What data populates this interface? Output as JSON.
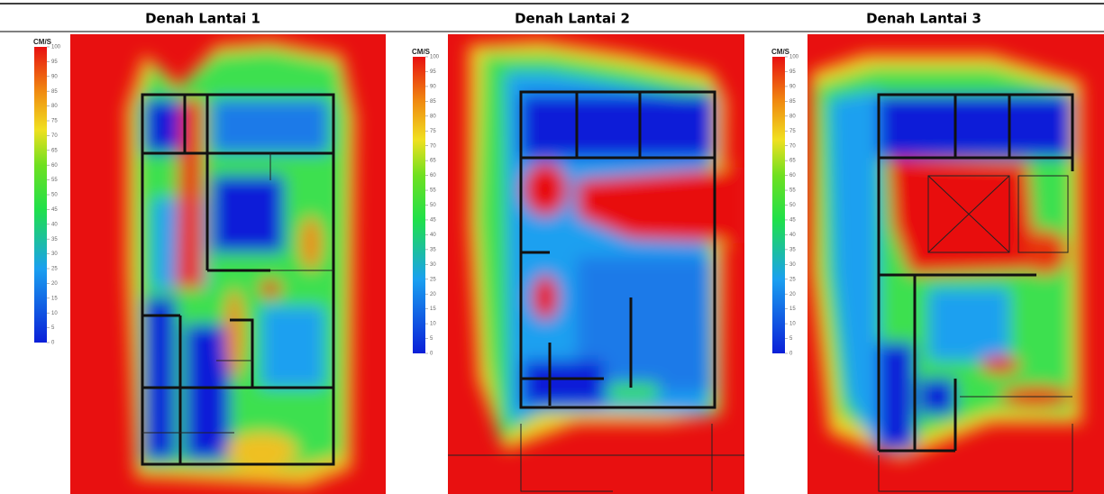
{
  "header": {
    "columns": [
      "Denah Lantai 1",
      "Denah Lantai 2",
      "Denah Lantai 3"
    ]
  },
  "panels": [
    {
      "legend": {
        "unit": "CM/S",
        "ticks": [
          100,
          95,
          90,
          85,
          80,
          75,
          70,
          65,
          60,
          55,
          50,
          45,
          40,
          35,
          30,
          25,
          20,
          15,
          10,
          5,
          0
        ]
      }
    },
    {
      "legend": {
        "unit": "CM/S",
        "ticks": [
          100,
          95,
          90,
          85,
          80,
          75,
          70,
          65,
          60,
          55,
          50,
          45,
          40,
          35,
          30,
          25,
          20,
          15,
          10,
          5,
          0
        ]
      }
    },
    {
      "legend": {
        "unit": "CM/S",
        "ticks": [
          100,
          95,
          90,
          85,
          80,
          75,
          70,
          65,
          60,
          55,
          50,
          45,
          40,
          35,
          30,
          25,
          20,
          15,
          10,
          5,
          0
        ]
      }
    }
  ]
}
